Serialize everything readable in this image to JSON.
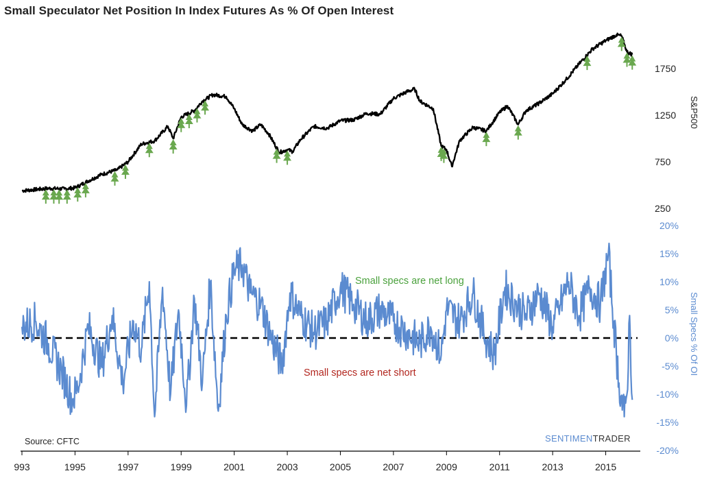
{
  "title": "Small Speculator Net Position In Index Futures As % Of Open Interest",
  "source": "Source: CFTC",
  "brand": {
    "part1": "SENTIMEN",
    "part2": "TRADER"
  },
  "annotations": {
    "long": "Small specs are net long",
    "short": "Small specs are net short"
  },
  "colors": {
    "sp500": "#000000",
    "specs": "#5b8bd0",
    "tree": "#6aa84f",
    "long": "#4aa13c",
    "short": "#b2261e"
  },
  "chart_data": [
    {
      "type": "line",
      "ylabel": "S&P500",
      "yticks": [
        250,
        750,
        1250,
        1750
      ],
      "ylim": [
        250,
        2150
      ],
      "series": [
        {
          "values_x": [
            1993.0,
            1994.0,
            1994.6,
            1995.0,
            1995.5,
            1996.0,
            1996.6,
            1997.0,
            1997.5,
            1998.0,
            1998.5,
            1998.7,
            1999.0,
            1999.5,
            1999.8,
            2000.2,
            2000.7,
            2001.0,
            2001.3,
            2001.7,
            2002.0,
            2002.3,
            2002.7,
            2003.0,
            2003.2,
            2003.5,
            2004.0,
            2004.5,
            2005.0,
            2005.5,
            2006.0,
            2006.5,
            2007.0,
            2007.5,
            2007.8,
            2008.0,
            2008.5,
            2008.8,
            2009.0,
            2009.2,
            2009.5,
            2010.0,
            2010.5,
            2011.0,
            2011.3,
            2011.7,
            2012.0,
            2012.5,
            2013.0,
            2013.5,
            2014.0,
            2014.5,
            2015.0,
            2015.4,
            2015.6,
            2015.8,
            2016.0
          ],
          "values_y": [
            440,
            465,
            460,
            470,
            545,
            615,
            665,
            750,
            940,
            975,
            1130,
            1000,
            1230,
            1300,
            1400,
            1470,
            1450,
            1320,
            1150,
            1080,
            1150,
            1050,
            850,
            880,
            860,
            990,
            1130,
            1110,
            1190,
            1200,
            1270,
            1260,
            1430,
            1500,
            1530,
            1400,
            1320,
            920,
            880,
            700,
            980,
            1120,
            1080,
            1280,
            1350,
            1150,
            1300,
            1380,
            1480,
            1630,
            1800,
            1960,
            2050,
            2110,
            2100,
            1930,
            1900
          ]
        }
      ],
      "markers": [
        1993.9,
        1994.2,
        1994.4,
        1994.7,
        1995.1,
        1995.4,
        1996.5,
        1996.9,
        1997.8,
        1998.7,
        1999.0,
        1999.3,
        1999.6,
        1999.9,
        2002.6,
        2003.0,
        2008.8,
        2008.9,
        2010.5,
        2011.7,
        2014.3,
        2015.6,
        2015.8,
        2016.0
      ]
    },
    {
      "type": "line",
      "ylabel": "Small Specs % Of OI",
      "yticks": [
        "20%",
        "15%",
        "10%",
        "5%",
        "0%",
        "-5%",
        "-10%",
        "-15%",
        "-20%"
      ],
      "ylim": [
        -20,
        20
      ],
      "xticks": [
        "993",
        "1995",
        "1997",
        "1999",
        "2001",
        "2003",
        "2005",
        "2007",
        "2009",
        "2011",
        "2013",
        "2015"
      ],
      "xlim": [
        1993.0,
        2016.2
      ],
      "series": [
        {
          "name": "Small Specs % Of OI",
          "values_x": [
            1993.0,
            1993.5,
            1994.0,
            1994.5,
            1994.9,
            1995.1,
            1995.5,
            1996.0,
            1996.4,
            1996.8,
            1997.2,
            1997.5,
            1997.8,
            1998.0,
            1998.3,
            1998.6,
            1998.9,
            1999.2,
            1999.5,
            1999.8,
            2000.1,
            2000.4,
            2000.7,
            2001.0,
            2001.3,
            2001.6,
            2002.0,
            2002.4,
            2002.8,
            2003.1,
            2003.5,
            2004.0,
            2004.5,
            2005.0,
            2005.5,
            2006.0,
            2006.5,
            2007.0,
            2007.5,
            2008.0,
            2008.4,
            2008.8,
            2009.0,
            2009.5,
            2010.0,
            2010.4,
            2010.8,
            2011.2,
            2011.6,
            2012.0,
            2012.5,
            2013.0,
            2013.3,
            2013.6,
            2014.0,
            2014.4,
            2014.8,
            2015.1,
            2015.3,
            2015.5,
            2015.7,
            2015.8,
            2015.9,
            2016.0
          ],
          "values_y": [
            2,
            3,
            -1,
            -6,
            -11,
            -9,
            2,
            -5,
            4,
            -8,
            3,
            -2,
            10,
            -14,
            9,
            -10,
            5,
            -12,
            7,
            -8,
            10,
            -13,
            4,
            12,
            13,
            8,
            6,
            0,
            -5,
            8,
            4,
            1,
            3,
            9,
            6,
            3,
            5,
            3,
            1,
            -1,
            2,
            -3,
            5,
            3,
            8,
            1,
            -3,
            9,
            6,
            4,
            8,
            2,
            6,
            10,
            4,
            9,
            6,
            15,
            3,
            -8,
            -14,
            -10,
            4,
            -11
          ]
        }
      ],
      "reference_line": 0
    }
  ]
}
